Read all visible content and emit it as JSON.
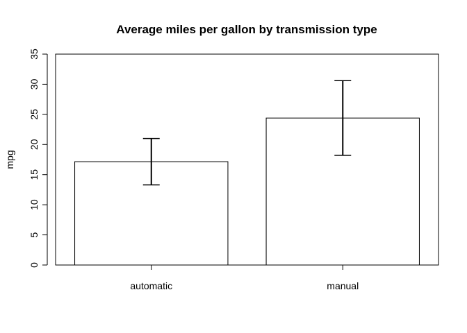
{
  "chart_data": {
    "type": "bar",
    "title": "Average miles per gallon by transmission type",
    "xlabel": "",
    "ylabel": "mpg",
    "categories": [
      "automatic",
      "manual"
    ],
    "values": [
      17.15,
      24.39
    ],
    "error_bars": {
      "lower": [
        13.3,
        18.2
      ],
      "upper": [
        21.0,
        30.6
      ]
    },
    "ylim": [
      0,
      35
    ],
    "yticks": [
      0,
      5,
      10,
      15,
      20,
      25,
      30,
      35
    ],
    "grid": false,
    "legend": "none",
    "colors": {
      "bar_fill": "#ffffff",
      "bar_stroke": "#000000",
      "axis": "#000000"
    }
  }
}
